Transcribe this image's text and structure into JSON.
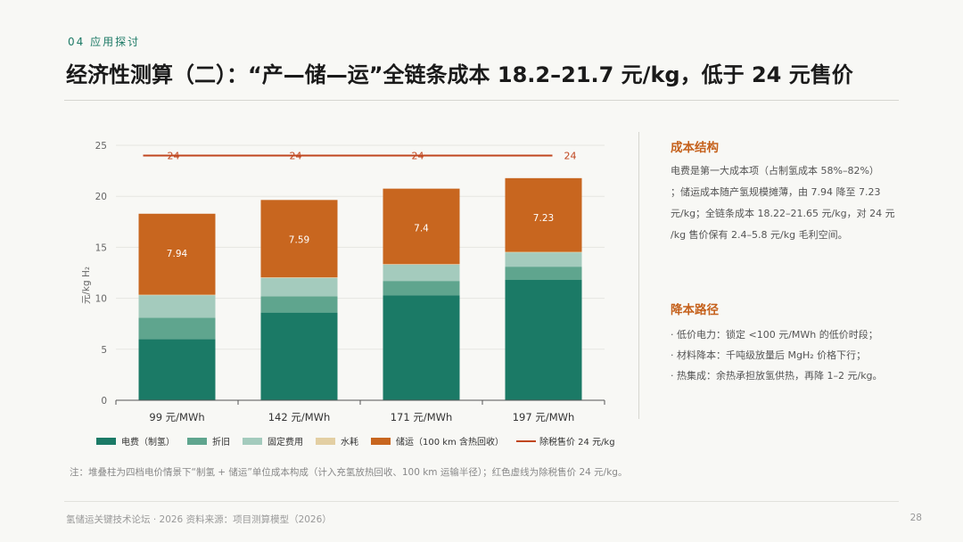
{
  "header": {
    "section": "04 应用探讨",
    "title": "经济性测算（二）：“产—储—运”全链条成本 18.2–21.7 元/kg，低于 24 元售价"
  },
  "chart_data": {
    "type": "bar",
    "stacked": true,
    "categories": [
      "99 元/MWh",
      "142 元/MWh",
      "171 元/MWh",
      "197 元/MWh"
    ],
    "ylabel": "元/kg H₂",
    "ylim": [
      0,
      25
    ],
    "yticks": [
      0,
      5,
      10,
      15,
      20,
      25
    ],
    "grid": true,
    "legend_position": "bottom",
    "series": [
      {
        "name": "电费（制氢）",
        "color": "#1b7a66",
        "values": [
          6.0,
          8.6,
          10.3,
          11.8
        ]
      },
      {
        "name": "折旧",
        "color": "#5fa58e",
        "values": [
          2.1,
          1.6,
          1.4,
          1.3
        ]
      },
      {
        "name": "固定费用",
        "color": "#a4cbbd",
        "values": [
          2.2,
          1.8,
          1.6,
          1.4
        ]
      },
      {
        "name": "水耗",
        "color": "#e3cfa3",
        "values": [
          0.05,
          0.05,
          0.05,
          0.05
        ]
      },
      {
        "name": "储运（100 km 含热回收）",
        "color": "#c8661f",
        "values": [
          7.94,
          7.59,
          7.4,
          7.23
        ],
        "labels": [
          "7.94",
          "7.59",
          "7.4",
          "7.23"
        ]
      }
    ],
    "reference_line": {
      "name": "除税售价 24 元/kg",
      "value": 24,
      "color": "#c0461f",
      "labels": [
        "24",
        "24",
        "24",
        "24"
      ]
    }
  },
  "sidebar": {
    "cost_structure": {
      "heading": "成本结构",
      "lines": [
        "电费是第一大成本项（占制氢成本 58%–82%）",
        "；储运成本随产氢规模摊薄，由 7.94 降至 7.23",
        "元/kg；全链条成本 18.22–21.65 元/kg，对 24 元",
        "/kg 售价保有 2.4–5.8 元/kg 毛利空间。"
      ]
    },
    "reduction": {
      "heading": "降本路径",
      "items": [
        "· 低价电力：锁定 <100 元/MWh 的低价时段；",
        "· 材料降本：千吨级放量后 MgH₂ 价格下行；",
        "· 热集成：余热承担放氢供热，再降 1–2 元/kg。"
      ]
    }
  },
  "note": "注：堆叠柱为四档电价情景下“制氢 + 储运”单位成本构成（计入充氢放热回收、100 km 运输半径）；红色虚线为除税售价 24 元/kg。",
  "footer": {
    "source": "氢储运关键技术论坛 · 2026    资料来源：项目测算模型（2026）",
    "page": "28"
  }
}
